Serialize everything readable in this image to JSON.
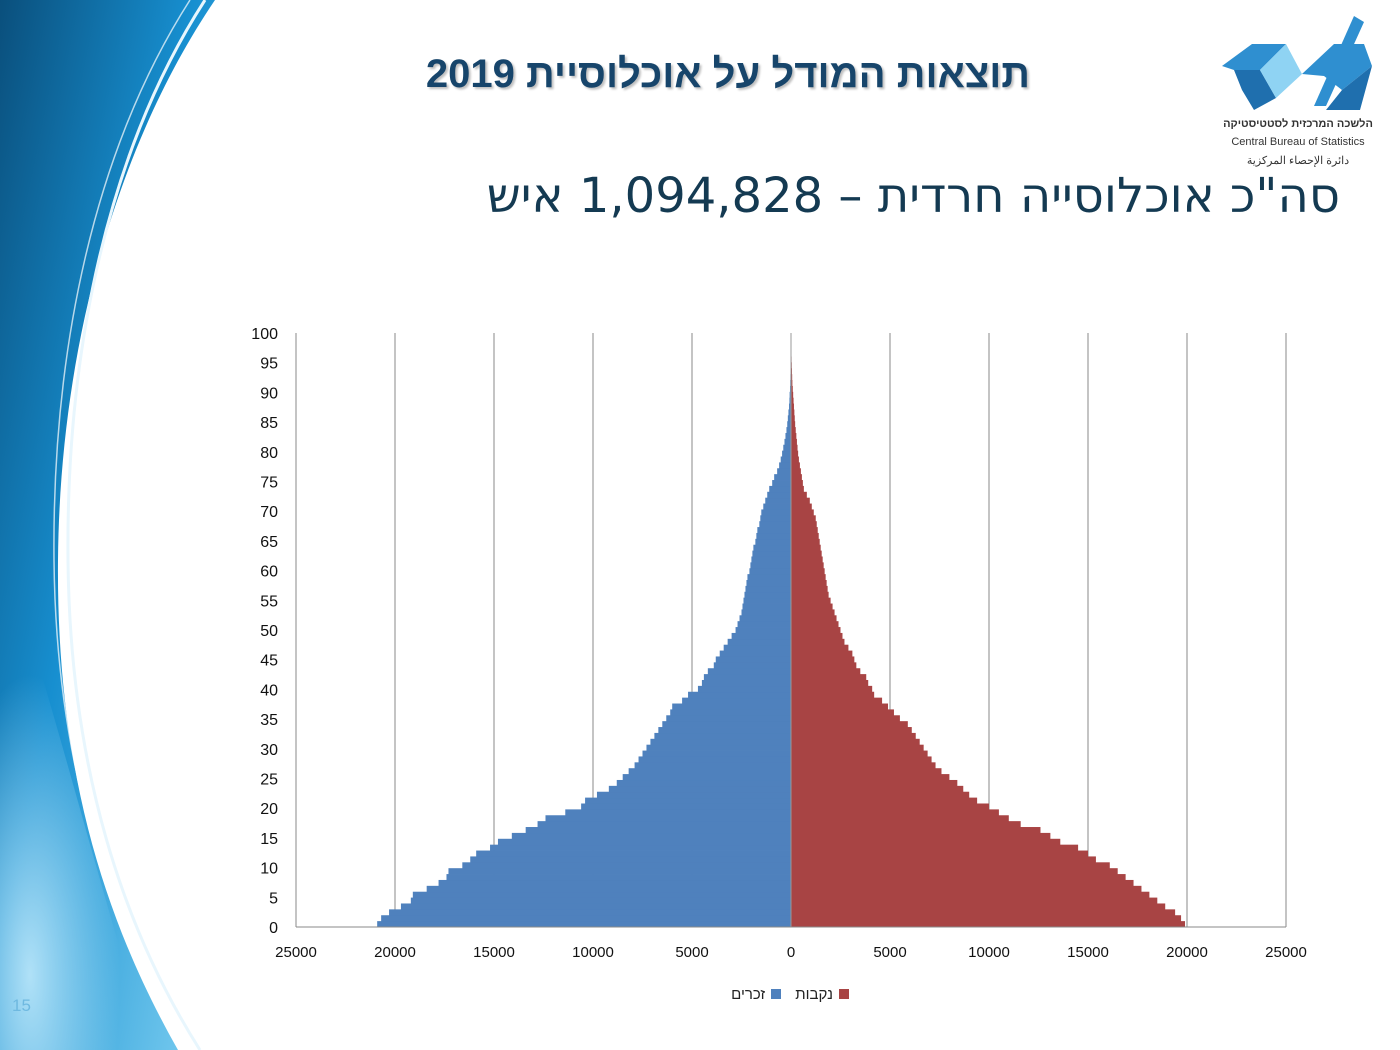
{
  "slide": {
    "title": "תוצאות המודל על אוכלוסיית 2019",
    "subtitle": "סה\"כ אוכלוסייה חרדית – 1,094,828 איש",
    "page_number": "15"
  },
  "logo": {
    "hebrew": "הלשכה המרכזית לסטטיסטיקה",
    "english": "Central Bureau of Statistics",
    "arabic": "دائرة الإحصاء المركزية",
    "color": "#2f8fd0"
  },
  "colors": {
    "males": "#4f81bd",
    "females": "#a84444",
    "title": "#17456b",
    "accent_blue": "#1b7fc1"
  },
  "chart_data": {
    "type": "bar",
    "orientation": "horizontal",
    "subtype": "population-pyramid",
    "grid": true,
    "xlim": [
      -25000,
      25000
    ],
    "xticks": [
      -25000,
      -20000,
      -15000,
      -10000,
      -5000,
      0,
      5000,
      10000,
      15000,
      20000,
      25000
    ],
    "xtick_labels": [
      "25000",
      "20000",
      "15000",
      "10000",
      "5000",
      "0",
      "5000",
      "10000",
      "15000",
      "20000",
      "25000"
    ],
    "ylim": [
      0,
      100
    ],
    "yticks": [
      0,
      5,
      10,
      15,
      20,
      25,
      30,
      35,
      40,
      45,
      50,
      55,
      60,
      65,
      70,
      75,
      80,
      85,
      90,
      95,
      100
    ],
    "ages": [
      0,
      1,
      2,
      3,
      4,
      5,
      6,
      7,
      8,
      9,
      10,
      11,
      12,
      13,
      14,
      15,
      16,
      17,
      18,
      19,
      20,
      21,
      22,
      23,
      24,
      25,
      26,
      27,
      28,
      29,
      30,
      31,
      32,
      33,
      34,
      35,
      36,
      37,
      38,
      39,
      40,
      41,
      42,
      43,
      44,
      45,
      46,
      47,
      48,
      49,
      50,
      51,
      52,
      53,
      54,
      55,
      56,
      57,
      58,
      59,
      60,
      61,
      62,
      63,
      64,
      65,
      66,
      67,
      68,
      69,
      70,
      71,
      72,
      73,
      74,
      75,
      76,
      77,
      78,
      79,
      80,
      81,
      82,
      83,
      84,
      85,
      86,
      87,
      88,
      89,
      90,
      91,
      92,
      93,
      94,
      95,
      96,
      97,
      98,
      99,
      100
    ],
    "legend_position": "bottom",
    "series": [
      {
        "name": "זכרים",
        "side": "left",
        "values": [
          20900,
          20700,
          20300,
          19700,
          19200,
          19100,
          18400,
          17800,
          17400,
          17300,
          16600,
          16200,
          15900,
          15200,
          14800,
          14100,
          13400,
          12800,
          12400,
          11400,
          10600,
          10400,
          9800,
          9200,
          8800,
          8500,
          8200,
          7900,
          7700,
          7500,
          7300,
          7100,
          6900,
          6700,
          6500,
          6300,
          6100,
          6000,
          5500,
          5200,
          4700,
          4500,
          4400,
          4200,
          3900,
          3800,
          3600,
          3400,
          3200,
          3000,
          2800,
          2700,
          2600,
          2500,
          2450,
          2400,
          2350,
          2300,
          2250,
          2200,
          2100,
          2050,
          2000,
          1950,
          1900,
          1800,
          1750,
          1700,
          1600,
          1550,
          1500,
          1400,
          1300,
          1200,
          1100,
          950,
          850,
          700,
          600,
          520,
          450,
          390,
          330,
          280,
          230,
          190,
          160,
          130,
          100,
          80,
          70,
          50,
          40,
          30,
          25,
          20,
          15,
          10,
          8,
          5,
          3
        ]
      },
      {
        "name": "נקבות",
        "side": "right",
        "values": [
          19900,
          19700,
          19400,
          18900,
          18500,
          18100,
          17700,
          17300,
          16900,
          16500,
          16100,
          15400,
          15000,
          14500,
          13600,
          13100,
          12600,
          11600,
          11000,
          10500,
          10000,
          9400,
          9000,
          8700,
          8400,
          8000,
          7600,
          7300,
          7100,
          6900,
          6700,
          6500,
          6300,
          6100,
          5900,
          5500,
          5200,
          4900,
          4600,
          4200,
          4100,
          3900,
          3800,
          3500,
          3300,
          3200,
          3100,
          2900,
          2700,
          2600,
          2500,
          2400,
          2300,
          2200,
          2100,
          2000,
          1900,
          1850,
          1800,
          1750,
          1700,
          1650,
          1600,
          1550,
          1500,
          1450,
          1400,
          1350,
          1300,
          1250,
          1150,
          1050,
          950,
          800,
          650,
          600,
          550,
          500,
          450,
          400,
          360,
          330,
          300,
          270,
          240,
          210,
          190,
          170,
          150,
          130,
          110,
          90,
          70,
          60,
          50,
          40,
          30,
          20,
          10,
          8,
          5
        ]
      }
    ]
  }
}
